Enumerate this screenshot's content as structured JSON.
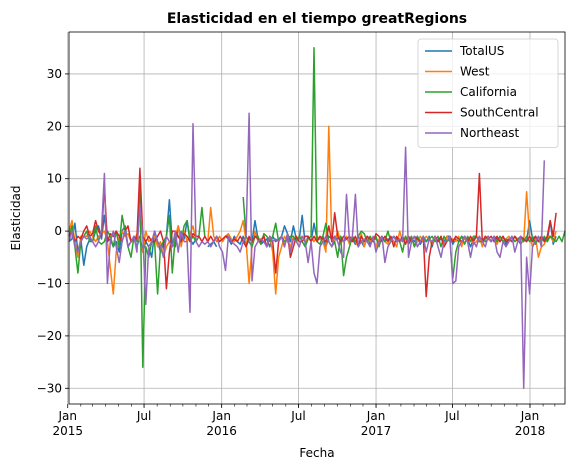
{
  "chart_data": {
    "type": "line",
    "title": "Elasticidad en el tiempo greatRegions",
    "xlabel": "Fecha",
    "ylabel": "Elasticidad",
    "ylim": [
      -33,
      38
    ],
    "xlim": [
      "2015-01-04",
      "2018-03-25"
    ],
    "y_ticks": [
      -30,
      -20,
      -10,
      0,
      10,
      20,
      30
    ],
    "x_ticks": [
      {
        "date": "2015-01-01",
        "line1": "Jan",
        "line2": "2015"
      },
      {
        "date": "2015-07-01",
        "line1": "Jul",
        "line2": ""
      },
      {
        "date": "2016-01-01",
        "line1": "Jan",
        "line2": "2016"
      },
      {
        "date": "2016-07-01",
        "line1": "Jul",
        "line2": ""
      },
      {
        "date": "2017-01-01",
        "line1": "Jan",
        "line2": "2017"
      },
      {
        "date": "2017-07-01",
        "line1": "Jul",
        "line2": ""
      },
      {
        "date": "2018-01-01",
        "line1": "Jan",
        "line2": "2018"
      }
    ],
    "grid": true,
    "legend_position": "top-right",
    "start_date": "2015-01-04",
    "step_days": 7,
    "series": [
      {
        "name": "TotalUS",
        "color": "#1f77b4",
        "values": [
          -2,
          -1.5,
          1.5,
          -4,
          -1.5,
          -6.5,
          -3,
          -1.5,
          -2,
          0,
          1,
          -1.5,
          3,
          -2,
          -1.5,
          -3,
          -2,
          -4,
          0,
          1,
          -3,
          -2,
          -1.5,
          -3,
          -1,
          -4,
          -2,
          -3,
          -5,
          0,
          -2,
          -4,
          -2.5,
          -1,
          6,
          -2.5,
          -3,
          1,
          -1.5,
          -1.5,
          2,
          -1.5,
          -2.5,
          -1.5,
          null,
          null,
          null,
          -3,
          -2.5,
          -2,
          -3,
          null,
          -2,
          -1,
          -1.5,
          -2.5,
          -1,
          -2,
          -2.5,
          -1,
          -3,
          -1.5,
          -2,
          2,
          -1.5,
          -2.5,
          -2,
          -1.5,
          -3,
          -1,
          -2,
          -1.5,
          -1,
          1,
          -0.5,
          -2,
          1,
          -1.5,
          -1.5,
          3,
          -2.5,
          -1,
          -2,
          1.5,
          -1.5,
          -1.5,
          -1,
          -3,
          -1,
          -1.5,
          -1,
          -1.5,
          -1,
          -2,
          -1.5,
          -2,
          -1.5,
          -2.5,
          -1,
          -2,
          -3,
          -1,
          -2.5,
          -1.5,
          -1.5,
          -2,
          -1,
          -2,
          -1.5,
          -1.5,
          -1,
          -2,
          -1.5,
          -2,
          -1,
          -2.5,
          -1.5,
          -2,
          -1,
          -2.5,
          -1.5,
          -2,
          -1,
          -3,
          -1,
          -2,
          -1.5,
          -2,
          -1,
          -1,
          -2.5,
          -1.5,
          -2,
          -1,
          -1.5,
          -1.5,
          -3,
          -1.5,
          -1,
          -2,
          -1.5,
          -2,
          -1.5,
          -2,
          -1,
          -1.5,
          -2,
          -1,
          -2.5,
          -1.5,
          -2,
          -1,
          -1.5,
          -2.5,
          -1.5,
          -2,
          2,
          -1.5,
          -1,
          -2,
          -1,
          -1.5,
          -2,
          2,
          -2.5,
          -1
        ]
      },
      {
        "name": "West",
        "color": "#ff7f0e",
        "values": [
          0,
          2,
          -2,
          -5,
          -1,
          -1,
          -1,
          0,
          -1,
          -2,
          -1,
          -0.5,
          0,
          -2,
          -7,
          -12,
          -4,
          -1,
          0,
          -1,
          -0.5,
          -2,
          -2,
          -0.5,
          -2,
          -4,
          0,
          -2,
          -1.5,
          -1,
          -3,
          -2,
          -5,
          -3,
          -2,
          -3,
          -1,
          1,
          -3,
          0,
          -2,
          -0.5,
          1,
          -2,
          null,
          null,
          null,
          -2,
          4.5,
          -1,
          -2,
          -1,
          -2,
          -1,
          -0.5,
          -1.5,
          -2,
          -1,
          0,
          2,
          -2,
          -10,
          -3,
          0,
          -2,
          -1.5,
          -1,
          -3,
          -1,
          -4,
          -12,
          -5,
          -3,
          -1,
          -2,
          -3,
          -1,
          -2,
          -1.5,
          -1,
          -2,
          -1.5,
          -1,
          -2,
          -1,
          -1.5,
          -2,
          -4,
          20,
          -2,
          -2,
          0,
          -2,
          -2,
          -1,
          -2.5,
          -1,
          -2,
          -3,
          -0.5,
          -3,
          -1,
          -2,
          -1.5,
          -3,
          -1.5,
          -1,
          -2,
          -2.5,
          -1,
          -2,
          -3,
          0,
          -2,
          -1,
          -2,
          -1,
          -3,
          -2,
          -1,
          -2,
          -1,
          -1.5,
          -2.5,
          -1,
          -2,
          -1,
          -3,
          -1,
          -2,
          -1.5,
          -2,
          -1,
          -3,
          -1,
          -2,
          -1.5,
          -2.5,
          -2,
          -1,
          -3,
          -1,
          -1.5,
          -2,
          -1,
          -2.5,
          -1,
          -2,
          -1.5,
          -1,
          -2,
          -1,
          -1.5,
          -2,
          -2,
          7.5,
          -1,
          -3,
          -1,
          -5,
          -3,
          -2.5,
          -1,
          -1,
          -2,
          0
        ]
      },
      {
        "name": "California",
        "color": "#2ca02c",
        "values": [
          -1,
          1,
          -3,
          -8,
          -2,
          -1,
          0,
          -2,
          -2,
          1,
          -2,
          -2.5,
          -2,
          0,
          -1,
          -3,
          0,
          -3,
          3,
          0,
          -3,
          -5,
          -1,
          -2,
          9,
          -26,
          -3,
          -5,
          -2,
          -2,
          -12,
          -3,
          -2,
          -1,
          3,
          -8,
          -1,
          -1,
          -2,
          1,
          2,
          -2,
          -1,
          -2,
          -1,
          4.5,
          -1,
          null,
          null,
          null,
          null,
          null,
          null,
          null,
          null,
          null,
          null,
          null,
          null,
          6.5,
          -1,
          -2,
          -3,
          -1,
          -1,
          -2.5,
          -0.5,
          -1,
          -2,
          -1,
          1.5,
          -2,
          -1,
          -2,
          -1.5,
          -1,
          -1,
          -2,
          -1,
          -2,
          -3,
          -1.5,
          -1,
          35,
          -2,
          -2.5,
          -1,
          1.5,
          -2,
          -3,
          -2,
          -5,
          -1,
          -8.5,
          -5,
          -3,
          -1,
          -2,
          -1,
          0,
          -0.5,
          -2,
          -1,
          -2,
          -1,
          -3,
          -1,
          -2,
          0,
          -2,
          -1,
          -1.5,
          -2,
          -4,
          -1,
          -2,
          -1,
          -3,
          -1,
          -2,
          -1,
          -2,
          -1.5,
          -1,
          -2,
          -1,
          -3,
          -1,
          -2,
          -1.5,
          -9,
          -4,
          -2,
          -1,
          -2.5,
          -1,
          -2,
          -1,
          -1,
          -2,
          -2,
          -1.5,
          -1,
          -2,
          -1,
          -2,
          -1,
          -2,
          -1.5,
          -2,
          -1,
          -2,
          -1.5,
          -1,
          -2,
          -1,
          -2,
          -1,
          -2.5,
          -1,
          -2,
          -1,
          -2,
          -1,
          -1.5,
          -2,
          -1,
          -2,
          0
        ]
      },
      {
        "name": "SouthCentral",
        "color": "#d62728",
        "values": [
          -1,
          0,
          -2,
          -1,
          -1.5,
          0,
          1,
          -1,
          -0.5,
          2,
          0,
          -1,
          8.5,
          -2,
          -0.5,
          -1,
          0,
          -1,
          -2,
          0,
          1,
          -2,
          -1,
          -1.5,
          12,
          -1,
          -2,
          -1,
          -2,
          -2,
          -1,
          0,
          -2,
          -11,
          -4,
          0,
          0,
          -1,
          -2,
          -0.5,
          -1,
          -2,
          -0.5,
          -1,
          -1,
          -2,
          -1,
          -2,
          -1,
          -2,
          -1,
          -2,
          -1.5,
          -1,
          -1,
          -2,
          -1.5,
          -2,
          -1,
          -2,
          -3,
          -1,
          -2,
          -1,
          -1.5,
          -2,
          -1,
          -3,
          -1,
          -2,
          -8,
          -2,
          -1,
          -3,
          -0.5,
          -5,
          -3,
          -1,
          -2,
          -2,
          -1,
          -1,
          -2,
          -1,
          -2,
          -1,
          -1.5,
          -2,
          1,
          -2,
          3.5,
          -1,
          -2,
          -1,
          -1.5,
          -1,
          -2,
          -1,
          -3,
          -1,
          -2,
          -1,
          -1.5,
          -2,
          -0.5,
          -1,
          -2,
          -1,
          -2,
          -1,
          -3,
          -1,
          -2,
          -1,
          -2.5,
          -1,
          -2,
          -1,
          -1.5,
          -2,
          -1,
          -12.5,
          -5,
          -2,
          -1,
          -2,
          -1,
          -3,
          -2,
          -1,
          -2,
          -1,
          -1.5,
          -2,
          -1,
          -2,
          -1,
          -2,
          -1,
          11,
          -2,
          -1,
          -1.5,
          -1,
          -2,
          -1,
          -2,
          -1,
          -2,
          -1.5,
          -2,
          -1,
          -2,
          -1,
          -1.5,
          -2,
          -1,
          -2,
          -1,
          -2,
          -1,
          -2,
          -1,
          2,
          -1,
          3.5
        ]
      },
      {
        "name": "Northeast",
        "color": "#9467bd",
        "values": [
          -2,
          0,
          -3,
          -4,
          -2,
          -1,
          -1.5,
          -1,
          -2,
          -3,
          -2,
          0,
          11,
          -10,
          -2,
          0,
          -3,
          -6,
          -2,
          0,
          -3,
          -2,
          -1,
          -4,
          5,
          -1,
          -14,
          -3,
          -2,
          0,
          -2,
          -3,
          -5,
          -1,
          -2,
          -3,
          0,
          -4,
          0,
          -2,
          -2,
          -15.5,
          20.5,
          -2,
          -3,
          -2,
          -2.5,
          -2,
          -3,
          -2,
          -1,
          -3,
          -4,
          -7.5,
          -1,
          -2,
          -2.5,
          -3,
          -4,
          -2,
          -1,
          22.5,
          -9.5,
          -3,
          -2,
          -1.5,
          -2,
          -3,
          -1,
          -2,
          -1.5,
          -2,
          -1,
          -3,
          -0.5,
          -4,
          -1.5,
          -2,
          -3,
          -1,
          -2,
          -6,
          -2,
          -8,
          -10,
          -3,
          -2,
          -1,
          -2,
          -3,
          -1,
          -2,
          -4,
          -5,
          7,
          -2,
          -1,
          7,
          -3,
          -2,
          -1.5,
          -2,
          -3,
          -1,
          -4,
          -2,
          -1,
          -6,
          -3,
          -2,
          -1,
          -2,
          -1.5,
          -2,
          16,
          -5,
          -2,
          -1,
          -3,
          -2,
          -1,
          -4,
          -1.5,
          -2,
          -1,
          -3,
          -5,
          -2,
          -2,
          -1,
          -10,
          -9.5,
          -3,
          -2,
          -1,
          -2,
          -5,
          -2,
          -3,
          -1,
          -2,
          -3,
          -1,
          -2,
          -1,
          -4,
          -5,
          -2,
          -3,
          -2,
          -1,
          -4,
          -2,
          -1,
          -30,
          -5,
          -12,
          -3,
          -2,
          -1,
          -3,
          13.5
        ]
      }
    ]
  }
}
